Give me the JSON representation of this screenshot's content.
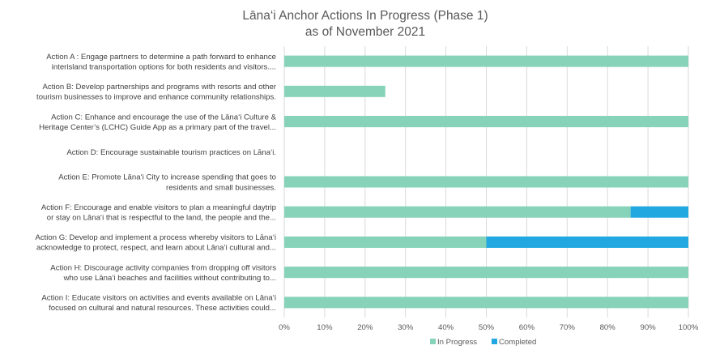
{
  "chart_data": {
    "type": "bar",
    "orientation": "horizontal",
    "stacked": true,
    "title": "Lāna‘i Anchor Actions In Progress (Phase 1)",
    "subtitle": "as of November 2021",
    "categories": [
      [
        "Action A : Engage partners to determine a path forward to enhance",
        "interisland transportation options for both residents and visitors...."
      ],
      [
        "Action B: Develop partnerships and programs with resorts and other",
        "tourism businesses to improve and enhance community relationships."
      ],
      [
        "Action C: Enhance and encourage the use of the Lāna‘i Culture &",
        "Heritage Center’s (LCHC) Guide App as a primary part of the travel..."
      ],
      [
        "Action D: Encourage sustainable tourism practices on Lāna‘i."
      ],
      [
        "Action E: Promote Lāna‘i City to increase spending that goes to",
        "residents and small businesses."
      ],
      [
        "Action F: Encourage and enable visitors to plan a meaningful daytrip",
        "or stay on Lāna‘i that is respectful to the land, the people and the..."
      ],
      [
        "Action G: Develop and implement a process whereby visitors to Lāna‘i",
        "acknowledge to protect, respect, and learn about Lāna‘i cultural and..."
      ],
      [
        "Action H: Discourage activity companies from dropping off visitors",
        "who use Lāna‘i beaches and facilities without contributing to..."
      ],
      [
        "Action I:  Educate visitors on activities and events available on Lāna‘i",
        "focused on cultural and natural resources. These activities could..."
      ]
    ],
    "series": [
      {
        "name": "In Progress",
        "color": "#86d3b9",
        "values": [
          1.0,
          0.25,
          1.0,
          0,
          1.0,
          0.857,
          0.5,
          1.0,
          1.0
        ]
      },
      {
        "name": "Completed",
        "color": "#21a8e0",
        "values": [
          0,
          0,
          0,
          0,
          0,
          0.143,
          0.5,
          0,
          0
        ]
      }
    ],
    "xlim": [
      0,
      1
    ],
    "x_ticks": [
      "0%",
      "10%",
      "20%",
      "30%",
      "40%",
      "50%",
      "60%",
      "70%",
      "80%",
      "90%",
      "100%"
    ],
    "grid": true,
    "legend_position": "bottom"
  }
}
